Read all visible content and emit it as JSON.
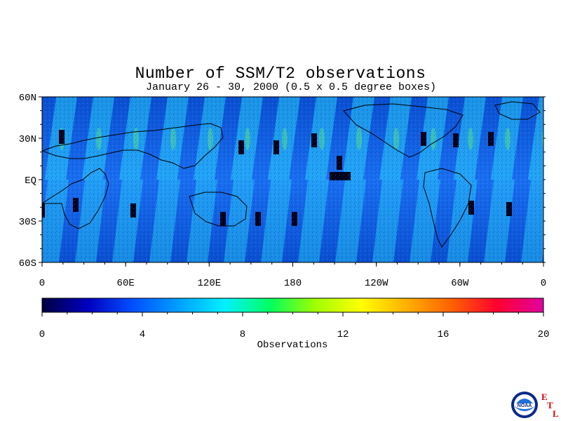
{
  "title": "Number of SSM/T2 observations",
  "subtitle": "January 26 - 30, 2000 (0.5 x 0.5 degree boxes)",
  "map": {
    "lat_labels": [
      "60N",
      "30N",
      "EQ",
      "30S",
      "60S"
    ],
    "lon_labels": [
      "0",
      "60E",
      "120E",
      "180",
      "120W",
      "60W",
      "0"
    ]
  },
  "colorbar": {
    "label": "Observations",
    "range": [
      0,
      20
    ],
    "tick_labels": [
      "0",
      "4",
      "8",
      "12",
      "16",
      "20"
    ],
    "colors": [
      "#000040",
      "#0000c0",
      "#0050ff",
      "#00a0ff",
      "#00f0ff",
      "#00ff60",
      "#a0ff00",
      "#ffff00",
      "#ffb000",
      "#ff6000",
      "#ff0030",
      "#e000a0"
    ]
  },
  "logo": {
    "text": "NOAA",
    "letters": [
      "E",
      "T",
      "L"
    ]
  }
}
